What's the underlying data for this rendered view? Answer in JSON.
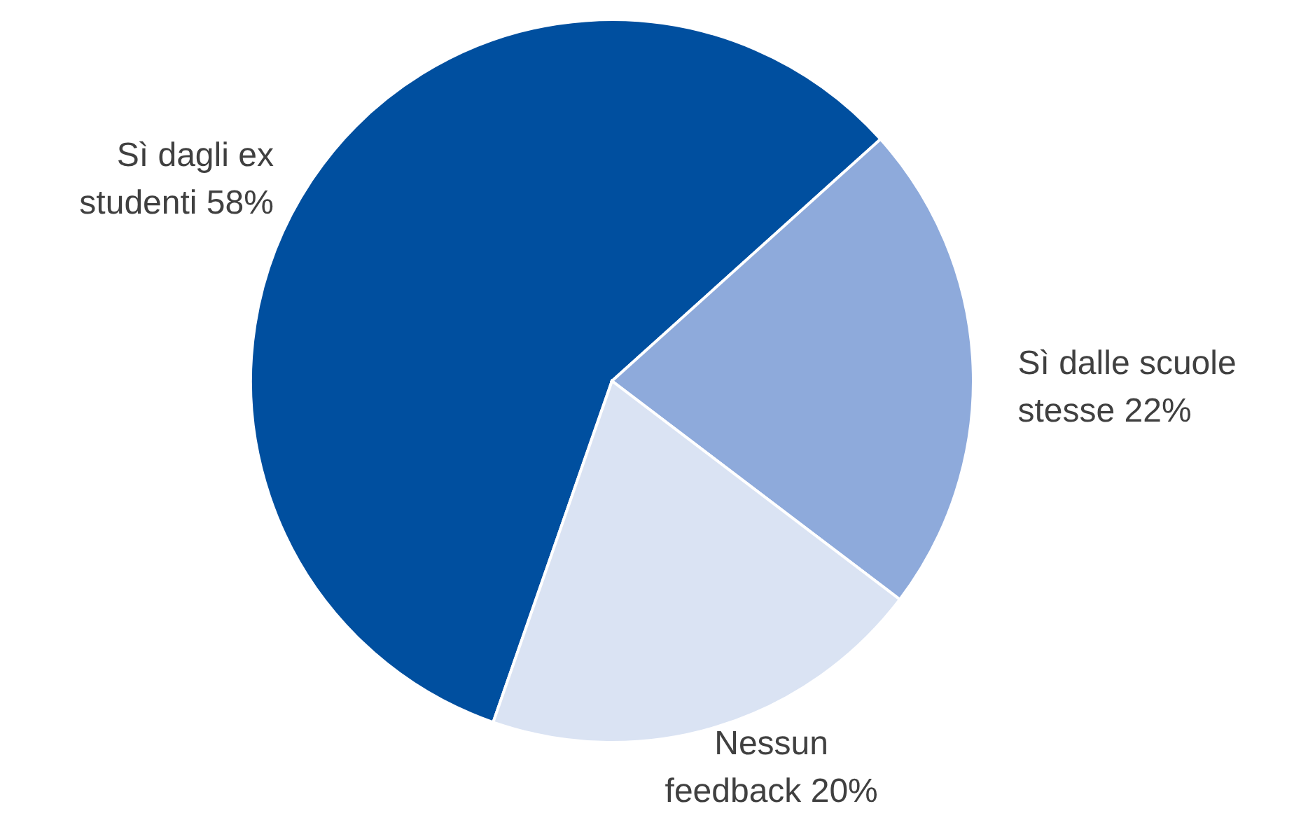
{
  "chart_data": {
    "type": "pie",
    "categories": [
      "Sì dagli ex\nstudenti",
      "Sì dalle scuole\nstesse",
      "Nessun\nfeedback"
    ],
    "values": [
      58,
      22,
      20
    ],
    "value_labels": [
      "58%",
      "22%",
      "20%"
    ],
    "colors": [
      "#004f9f",
      "#8eaadb",
      "#dae3f3"
    ]
  }
}
